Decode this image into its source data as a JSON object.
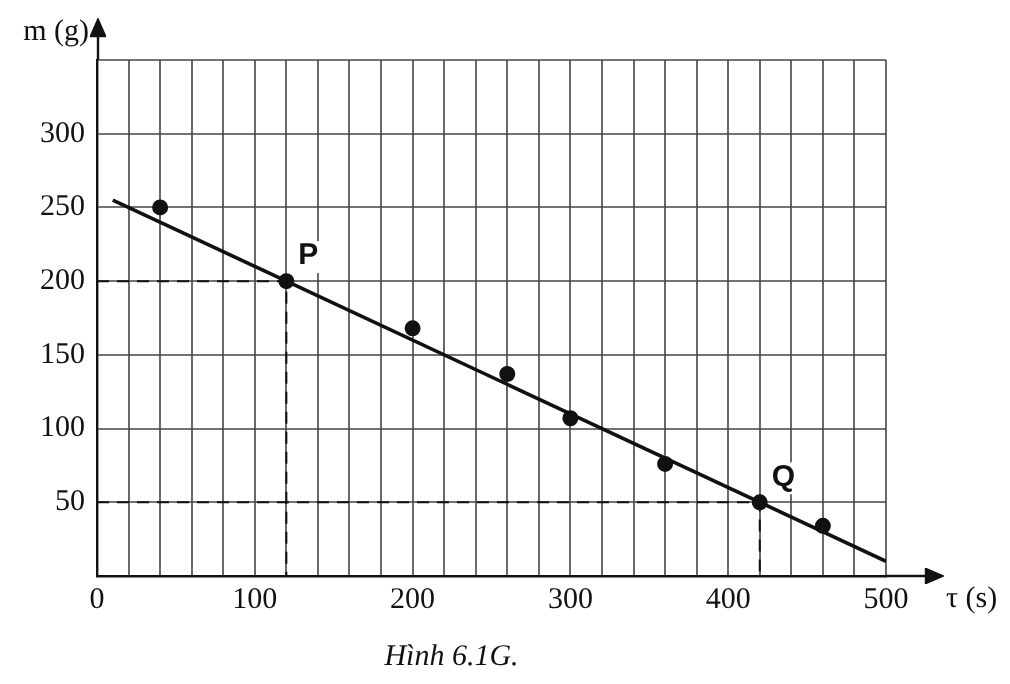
{
  "chart_data": {
    "type": "scatter",
    "xlabel": "τ (s)",
    "ylabel": "m (g)",
    "xlim": [
      0,
      500
    ],
    "ylim": [
      0,
      350
    ],
    "xticks": [
      0,
      {
        "value": 20,
        "label": null
      },
      {
        "value": 40,
        "label": null
      },
      {
        "value": 60,
        "label": null
      },
      {
        "value": 80,
        "label": null
      },
      100,
      {
        "value": 120,
        "label": null
      },
      {
        "value": 140,
        "label": null
      },
      {
        "value": 160,
        "label": null
      },
      {
        "value": 180,
        "label": null
      },
      200,
      {
        "value": 220,
        "label": null
      },
      {
        "value": 240,
        "label": null
      },
      {
        "value": 260,
        "label": null
      },
      {
        "value": 280,
        "label": null
      },
      300,
      {
        "value": 320,
        "label": null
      },
      {
        "value": 340,
        "label": null
      },
      {
        "value": 360,
        "label": null
      },
      {
        "value": 380,
        "label": null
      },
      400,
      {
        "value": 420,
        "label": null
      },
      {
        "value": 440,
        "label": null
      },
      {
        "value": 460,
        "label": null
      },
      {
        "value": 480,
        "label": null
      },
      500
    ],
    "yticks": [
      {
        "value": 0,
        "label": null
      },
      50,
      100,
      150,
      200,
      250,
      300,
      {
        "value": 350,
        "label": null
      }
    ],
    "grid": true,
    "legend": false,
    "marker": "circle",
    "series": [
      {
        "color": "#111111",
        "x": [
          40,
          120,
          200,
          260,
          300,
          360,
          420,
          460
        ],
        "values": [
          250,
          200,
          168,
          137,
          107,
          76,
          50,
          34
        ]
      },
      {
        "type": "line",
        "color": "#111111",
        "marker": "none",
        "line_style": "dashed",
        "x": [
          0,
          120,
          120
        ],
        "values": [
          200,
          200,
          0
        ]
      },
      {
        "type": "line",
        "color": "#111111",
        "marker": "none",
        "line_style": "dashed",
        "x": [
          0,
          420,
          420
        ],
        "values": [
          50,
          50,
          0
        ]
      },
      {
        "type": "line",
        "color": "#111111",
        "marker": "none",
        "x": [
          10,
          500
        ],
        "values": [
          255,
          10
        ]
      }
    ],
    "annotations": [
      {
        "text": "P",
        "x": 120,
        "y": 200
      },
      {
        "text": "Q",
        "x": 420,
        "y": 50
      },
      "Hình 6.1G."
    ]
  }
}
